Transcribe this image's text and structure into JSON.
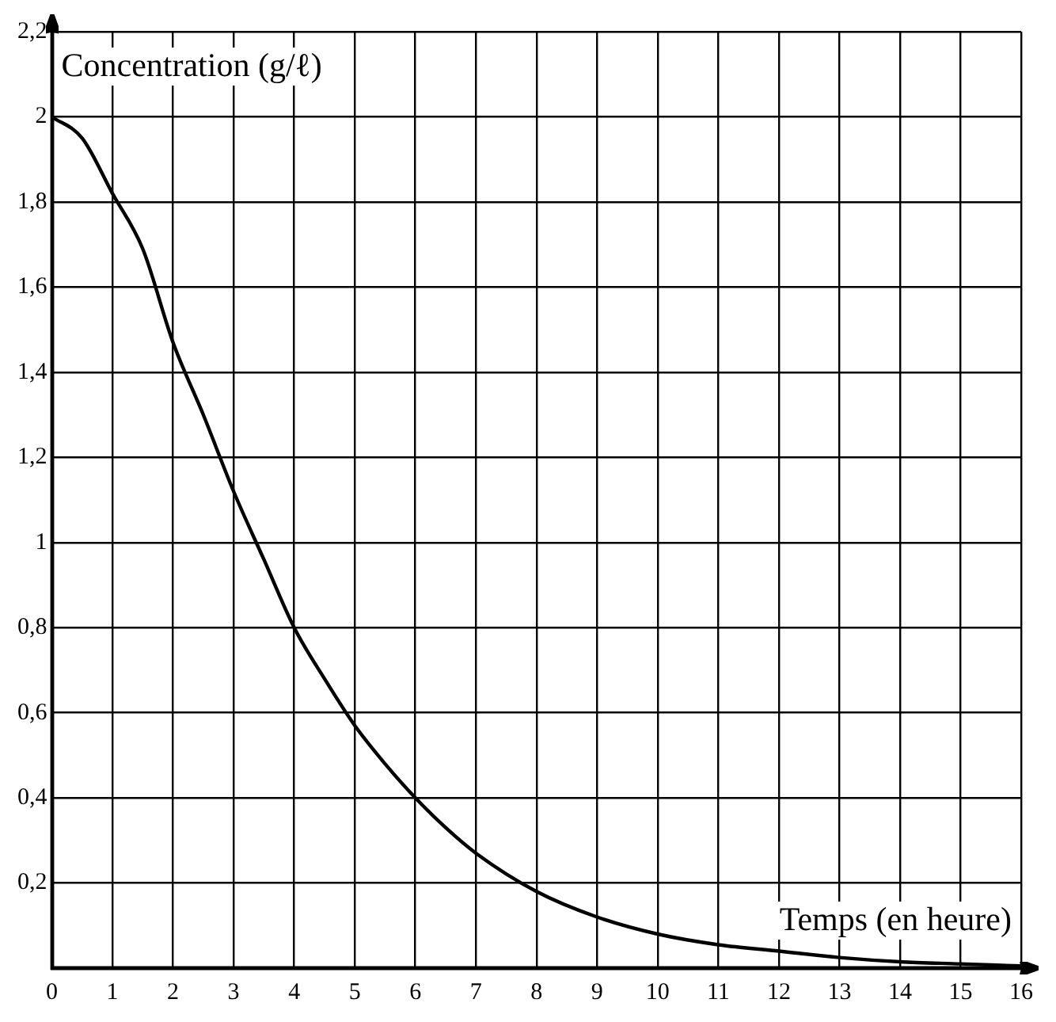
{
  "chart_data": {
    "type": "line",
    "xlabel": "Temps (en heure)",
    "ylabel": "Concentration (g/ℓ)",
    "x": [
      0,
      0.5,
      1,
      1.5,
      2,
      2.5,
      3,
      3.5,
      4,
      4.5,
      5,
      5.5,
      6,
      6.5,
      7,
      8,
      9,
      10,
      11,
      12,
      13,
      14,
      15,
      16
    ],
    "series": [
      {
        "color": "#000000",
        "values": [
          2,
          1.95,
          1.82,
          1.69,
          1.47,
          1.3,
          1.12,
          0.96,
          0.8,
          0.68,
          0.57,
          0.48,
          0.4,
          0.33,
          0.27,
          0.18,
          0.12,
          0.08,
          0.055,
          0.04,
          0.025,
          0.015,
          0.01,
          0.005
        ]
      }
    ],
    "xlim": [
      0,
      16
    ],
    "ylim": [
      0,
      2.2
    ],
    "xticks": [
      0,
      1,
      2,
      3,
      4,
      5,
      6,
      7,
      8,
      9,
      10,
      11,
      12,
      13,
      14,
      15,
      16
    ],
    "yticks": [
      {
        "value": 0,
        "label": null
      },
      {
        "value": 0.2,
        "label": "0,2"
      },
      {
        "value": 0.4,
        "label": "0,4"
      },
      {
        "value": 0.6,
        "label": "0,6"
      },
      {
        "value": 0.8,
        "label": "0,8"
      },
      1,
      {
        "value": 1.2,
        "label": "1,2"
      },
      {
        "value": 1.4,
        "label": "1,4"
      },
      {
        "value": 1.6,
        "label": "1,6"
      },
      {
        "value": 1.8,
        "label": "1,8"
      },
      2,
      {
        "value": 2.2,
        "label": "2,2"
      }
    ],
    "grid": true,
    "legend": false,
    "marker": "none",
    "line_style": "solid"
  }
}
